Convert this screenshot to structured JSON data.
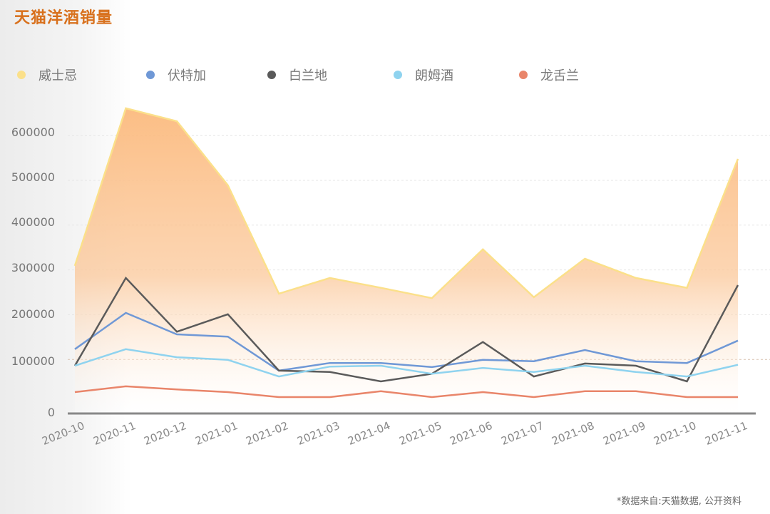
{
  "title": "天猫洋酒销量",
  "footnote": "*数据来自:天猫数据, 公开资料",
  "legend": [
    {
      "label": "威士忌",
      "color": "#fbe08a"
    },
    {
      "label": "伏特加",
      "color": "#6f98d6"
    },
    {
      "label": "白兰地",
      "color": "#5a5a5a"
    },
    {
      "label": "朗姆酒",
      "color": "#8fd3ef"
    },
    {
      "label": "龙舌兰",
      "color": "#e9856a"
    }
  ],
  "y_ticks": [
    "600000",
    "500000",
    "400000",
    "300000",
    "200000",
    "100000",
    "0"
  ],
  "x_ticks": [
    "2020-10",
    "2020-11",
    "2020-12",
    "2021-01",
    "2021-02",
    "2021-03",
    "2021-04",
    "2021-05",
    "2021-06",
    "2021-07",
    "2021-08",
    "2021-09",
    "2021-10",
    "2021-11"
  ],
  "chart_data": {
    "type": "line",
    "title": "天猫洋酒销量",
    "xlabel": "",
    "ylabel": "",
    "ylim": [
      0,
      650000
    ],
    "grid": true,
    "legend_position": "top",
    "categories": [
      "2020-10",
      "2020-11",
      "2020-12",
      "2021-01",
      "2021-02",
      "2021-03",
      "2021-04",
      "2021-05",
      "2021-06",
      "2021-07",
      "2021-08",
      "2021-09",
      "2021-10",
      "2021-11"
    ],
    "series": [
      {
        "name": "威士忌",
        "style": "area",
        "color": "#fbe08a",
        "values": [
          309000,
          661000,
          632000,
          489000,
          247000,
          282000,
          260000,
          237000,
          346000,
          239000,
          325000,
          282000,
          260000,
          548000
        ]
      },
      {
        "name": "伏特加",
        "color": "#6f98d6",
        "values": [
          123000,
          204000,
          156000,
          151000,
          75000,
          92000,
          92000,
          83000,
          99000,
          96000,
          121000,
          96000,
          92000,
          142000
        ]
      },
      {
        "name": "白兰地",
        "color": "#5a5a5a",
        "values": [
          86000,
          282000,
          162000,
          201000,
          75000,
          72000,
          51000,
          68000,
          139000,
          62000,
          91000,
          86000,
          51000,
          266000
        ]
      },
      {
        "name": "朗姆酒",
        "color": "#8fd3ef",
        "values": [
          86000,
          123000,
          105000,
          99000,
          62000,
          84000,
          86000,
          68000,
          81000,
          72000,
          86000,
          72000,
          62000,
          88000
        ]
      },
      {
        "name": "龙舌兰",
        "color": "#e9856a",
        "values": [
          27000,
          40000,
          33000,
          27000,
          16000,
          16000,
          29000,
          16000,
          27000,
          16000,
          29000,
          29000,
          16000,
          16000
        ]
      }
    ],
    "annotations": [
      "*数据来自:天猫数据, 公开资料"
    ]
  }
}
